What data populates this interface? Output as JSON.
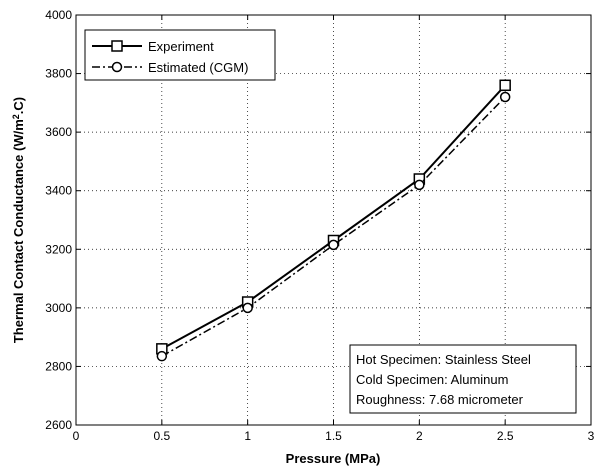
{
  "chart_data": {
    "type": "line",
    "xlabel": "Pressure (MPa)",
    "ylabel_main": "Thermal Contact Conductance (W/m",
    "ylabel_sup": "2",
    "ylabel_end": ".C)",
    "xlim": [
      0,
      3
    ],
    "ylim": [
      2600,
      4000
    ],
    "xticks": [
      0,
      0.5,
      1,
      1.5,
      2,
      2.5,
      3
    ],
    "yticks": [
      2600,
      2800,
      3000,
      3200,
      3400,
      3600,
      3800,
      4000
    ],
    "grid": true,
    "legend_position": "top-left",
    "x": [
      0.5,
      1,
      1.5,
      2,
      2.5
    ],
    "series": [
      {
        "name": "Experiment",
        "values": [
          2860,
          3020,
          3230,
          3440,
          3760
        ],
        "marker": "square",
        "line": "solid"
      },
      {
        "name": "Estimated (CGM)",
        "values": [
          2835,
          3000,
          3215,
          3420,
          3720
        ],
        "marker": "circle",
        "line": "dashdot"
      }
    ],
    "annotation": [
      "Hot Specimen: Stainless Steel",
      "Cold Specimen: Aluminum",
      "Roughness: 7.68 micrometer"
    ]
  }
}
